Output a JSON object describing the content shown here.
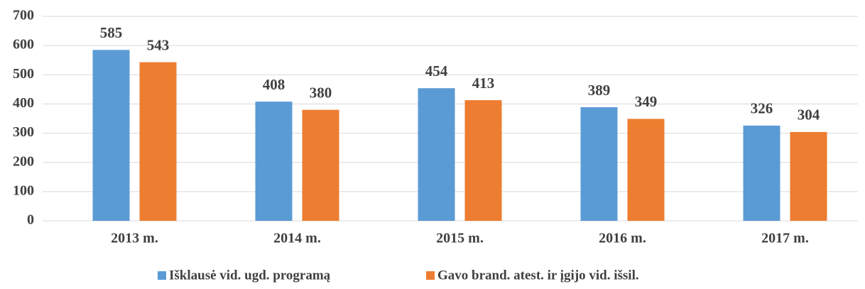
{
  "chart_data": {
    "type": "bar",
    "categories": [
      "2013 m.",
      "2014 m.",
      "2015 m.",
      "2016 m.",
      "2017 m."
    ],
    "series": [
      {
        "name": "Išklausė vid. ugd. programą",
        "color": "#5b9bd5",
        "values": [
          585,
          408,
          454,
          389,
          326
        ]
      },
      {
        "name": "Gavo brand. atest. ir įgijo vid. išsil.",
        "color": "#ed7d31",
        "values": [
          543,
          380,
          413,
          349,
          304
        ]
      }
    ],
    "ylim": [
      0,
      700
    ],
    "yticks": [
      0,
      100,
      200,
      300,
      400,
      500,
      600,
      700
    ],
    "grid": true,
    "legend": "bottom"
  }
}
